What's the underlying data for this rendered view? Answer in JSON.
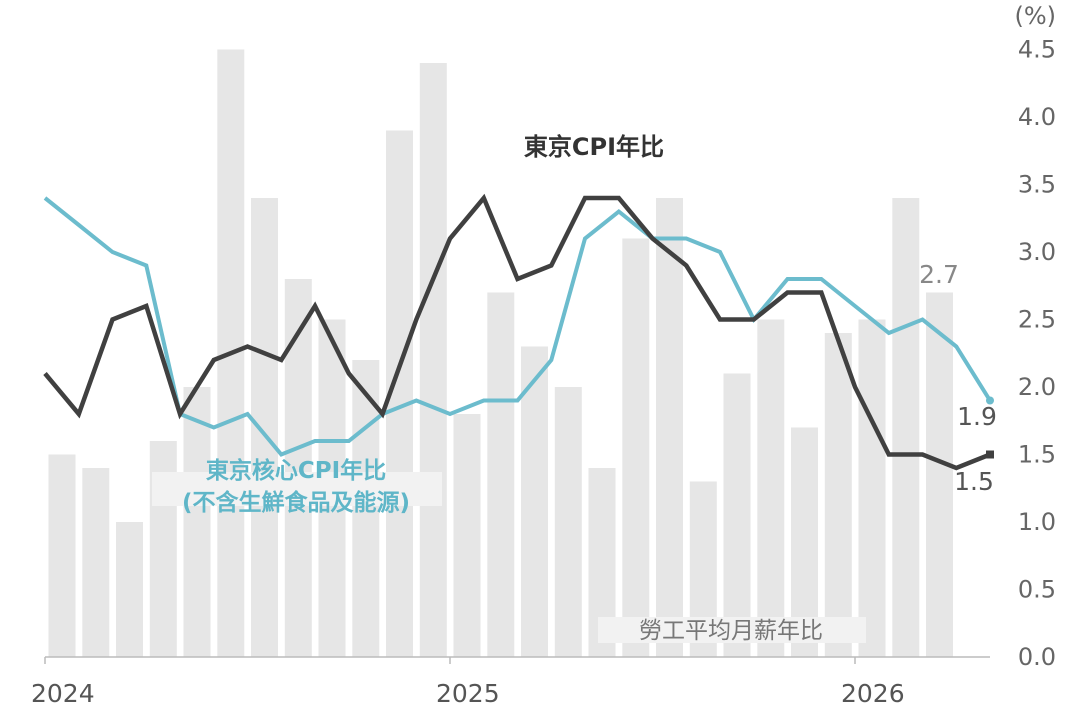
{
  "chart_data": {
    "type": "bar+line",
    "unit_label": "(%)",
    "ylim": [
      0,
      4.5
    ],
    "y_ticks": [
      "0.0",
      "0.5",
      "1.0",
      "1.5",
      "2.0",
      "2.5",
      "3.0",
      "3.5",
      "4.0",
      "4.5"
    ],
    "x_ticks": [
      "2024",
      "2025",
      "2026"
    ],
    "grid": false,
    "colors": {
      "bars": "#e6e6e6",
      "tokyo_cpi": "#404040",
      "tokyo_core_cpi": "#6cbccd"
    },
    "series": [
      {
        "name": "勞工平均月薪年比",
        "type": "bar",
        "values": [
          1.5,
          1.4,
          1.0,
          1.6,
          2.0,
          4.5,
          3.4,
          2.8,
          2.5,
          2.2,
          3.9,
          4.4,
          1.8,
          2.7,
          2.3,
          2.0,
          1.4,
          3.1,
          3.4,
          1.3,
          2.1,
          2.5,
          1.7,
          2.4,
          2.5,
          3.4,
          2.7
        ]
      },
      {
        "name": "東京CPI年比",
        "type": "line",
        "values": [
          2.1,
          1.8,
          2.5,
          2.6,
          1.8,
          2.2,
          2.3,
          2.2,
          2.6,
          2.1,
          1.8,
          2.5,
          3.1,
          3.4,
          2.8,
          2.9,
          3.4,
          3.4,
          3.1,
          2.9,
          2.5,
          2.5,
          2.7,
          2.7,
          2.0,
          1.5,
          1.5,
          1.4,
          1.5
        ]
      },
      {
        "name": "東京核心CPI年比",
        "name_line2": "(不含生鮮食品及能源)",
        "type": "line",
        "values": [
          3.4,
          3.2,
          3.0,
          2.9,
          1.8,
          1.7,
          1.8,
          1.5,
          1.6,
          1.6,
          1.8,
          1.9,
          1.8,
          1.9,
          1.9,
          2.2,
          3.1,
          3.3,
          3.1,
          3.1,
          3.0,
          2.5,
          2.8,
          2.8,
          2.6,
          2.4,
          2.5,
          2.3,
          1.9
        ]
      }
    ],
    "end_labels": {
      "bars_last": "2.7",
      "tokyo_core_cpi_last": "1.9",
      "tokyo_cpi_last": "1.5"
    }
  }
}
